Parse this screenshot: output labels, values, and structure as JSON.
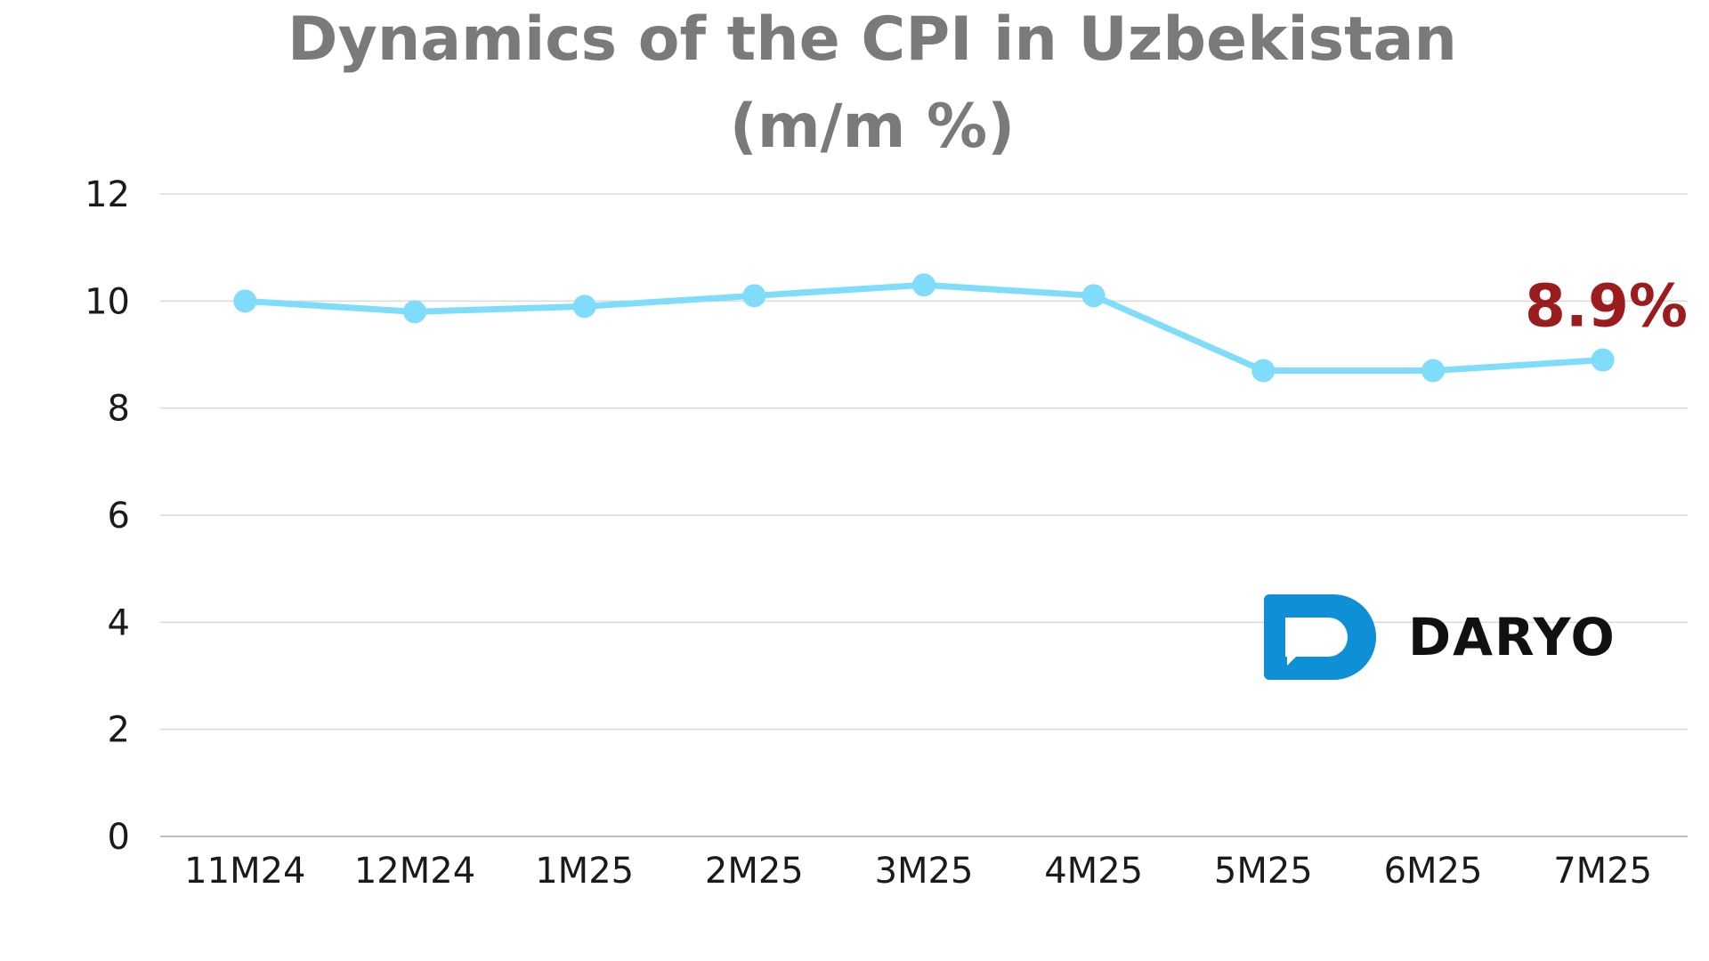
{
  "chart_data": {
    "type": "line",
    "title_line1": "Dynamics of the CPI in Uzbekistan",
    "title_line2": "(m/m %)",
    "categories": [
      "11M24",
      "12M24",
      "1M25",
      "2M25",
      "3M25",
      "4M25",
      "5M25",
      "6M25",
      "7M25"
    ],
    "values": [
      10.0,
      9.8,
      9.9,
      10.1,
      10.3,
      10.1,
      8.7,
      8.7,
      8.9
    ],
    "yticks": [
      "0",
      "2",
      "4",
      "6",
      "8",
      "10",
      "12"
    ],
    "ylim": [
      0,
      12
    ],
    "grid": true,
    "last_value_label": "8.9%",
    "colors": {
      "line": "#7fdcfa",
      "grid": "#d9d9d9",
      "axis": "#bfbfbf",
      "label": "#9b1c1c",
      "title": "#7a7a7a"
    }
  },
  "brand": {
    "name": "DARYO",
    "icon": "chat-bubble-d-icon",
    "color": "#0f8fd6"
  }
}
